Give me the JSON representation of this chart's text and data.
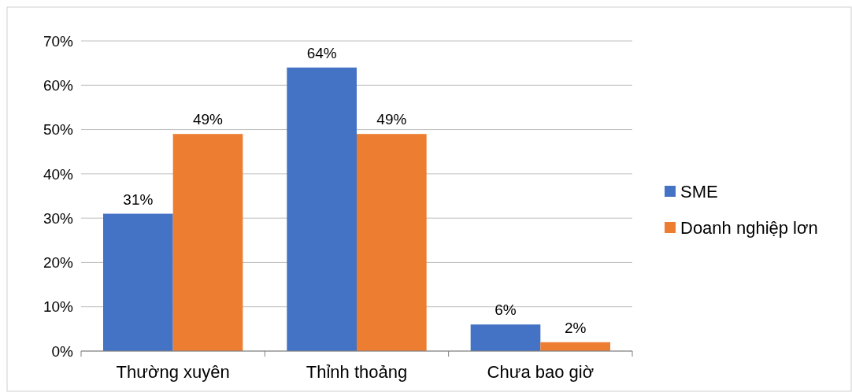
{
  "chart_data": {
    "type": "bar",
    "categories": [
      "Thường xuyên",
      "Thỉnh thoảng",
      "Chưa bao giờ"
    ],
    "series": [
      {
        "name": "SME",
        "color": "#4472c4",
        "values": [
          31,
          64,
          6
        ],
        "value_labels": [
          "31%",
          "64%",
          "6%"
        ]
      },
      {
        "name": "Doanh nghiệp lơn",
        "color": "#ed7d31",
        "values": [
          49,
          49,
          2
        ],
        "value_labels": [
          "49%",
          "49%",
          "2%"
        ]
      }
    ],
    "ylim": [
      0,
      70
    ],
    "yticks": [
      {
        "value": 0,
        "label": "0%"
      },
      {
        "value": 10,
        "label": "10%"
      },
      {
        "value": 20,
        "label": "20%"
      },
      {
        "value": 30,
        "label": "30%"
      },
      {
        "value": 40,
        "label": "40%"
      },
      {
        "value": 50,
        "label": "50%"
      },
      {
        "value": 60,
        "label": "60%"
      },
      {
        "value": 70,
        "label": "70%"
      }
    ],
    "grid": "y",
    "legend": "right"
  }
}
